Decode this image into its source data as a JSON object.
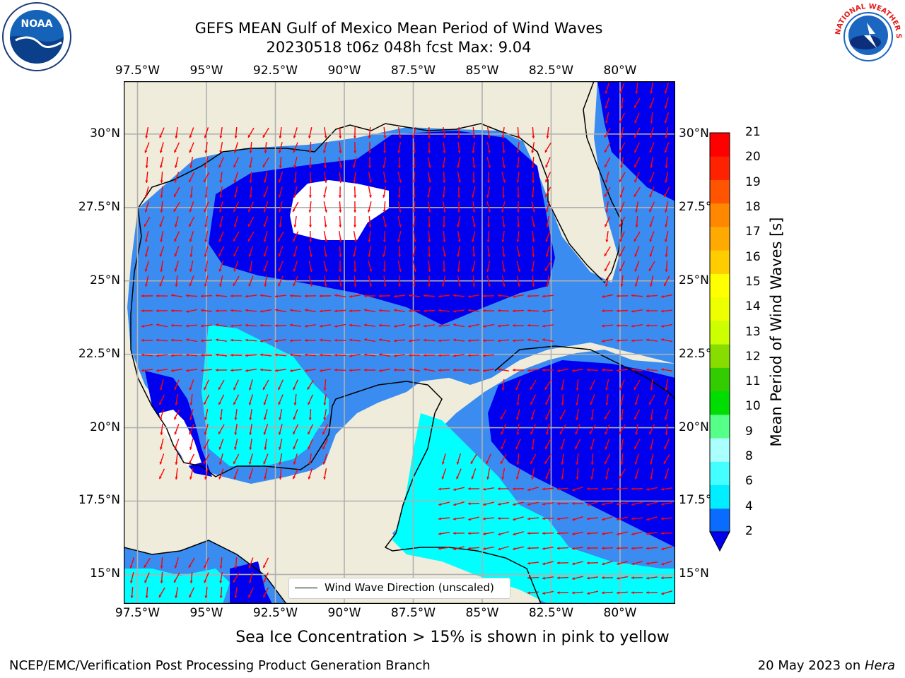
{
  "header": {
    "title_line1": "GEFS MEAN Gulf of Mexico Mean Period of Wind Waves",
    "title_line2": "20230518 t06z 048h fcst   Max: 9.04"
  },
  "map": {
    "lon_labels": [
      "97.5°W",
      "95°W",
      "92.5°W",
      "90°W",
      "87.5°W",
      "85°W",
      "82.5°W",
      "80°W"
    ],
    "lat_labels_left": [
      "30°N",
      "27.5°N",
      "25°N",
      "22.5°N",
      "20°N",
      "17.5°N",
      "15°N"
    ],
    "lat_labels_right": [
      "30°N",
      "27.5°",
      "25°N",
      "22.5°",
      "20°N",
      "17.5°",
      "15°N"
    ],
    "extent": {
      "lon_min": -98,
      "lon_max": -78,
      "lat_min": 14,
      "lat_max": 31.8
    },
    "legend_text": "Wind Wave Direction (unscaled)"
  },
  "colorbar": {
    "label": "Mean Period of Wind Waves [s]",
    "ticks": [
      "2",
      "4",
      "6",
      "8",
      "9",
      "10",
      "11",
      "12",
      "13",
      "14",
      "15",
      "16",
      "17",
      "18",
      "19",
      "20",
      "21"
    ],
    "colors": [
      "#0a6cff",
      "#00eeff",
      "#44ffff",
      "#aaffff",
      "#55ff88",
      "#00dd00",
      "#33cc00",
      "#88dd00",
      "#ccff00",
      "#eeff00",
      "#ffff00",
      "#ffcc00",
      "#ffaa00",
      "#ff8800",
      "#ff5500",
      "#ff2200",
      "#ff0000"
    ]
  },
  "footer": {
    "sea_ice_note": "Sea Ice Concentration > 15% is shown in pink to yellow",
    "producer": "NCEP/EMC/Verification Post Processing Product Generation Branch",
    "date": "20 May 2023 on ",
    "host": "Hera"
  },
  "logos": {
    "left": {
      "icon": "noaa-logo",
      "text": "NOAA"
    },
    "right": {
      "icon": "nws-logo",
      "text": "NATIONAL WEATHER SERVICE"
    }
  },
  "colors": {
    "land": "#efecdb",
    "period_2_4": "#3a8cf0",
    "period_low": "#0000ee",
    "period_4_6": "#00ffff",
    "period_6_8": "#aaffff",
    "arrow": "#ff0000",
    "grid": "#b0b0b0"
  }
}
